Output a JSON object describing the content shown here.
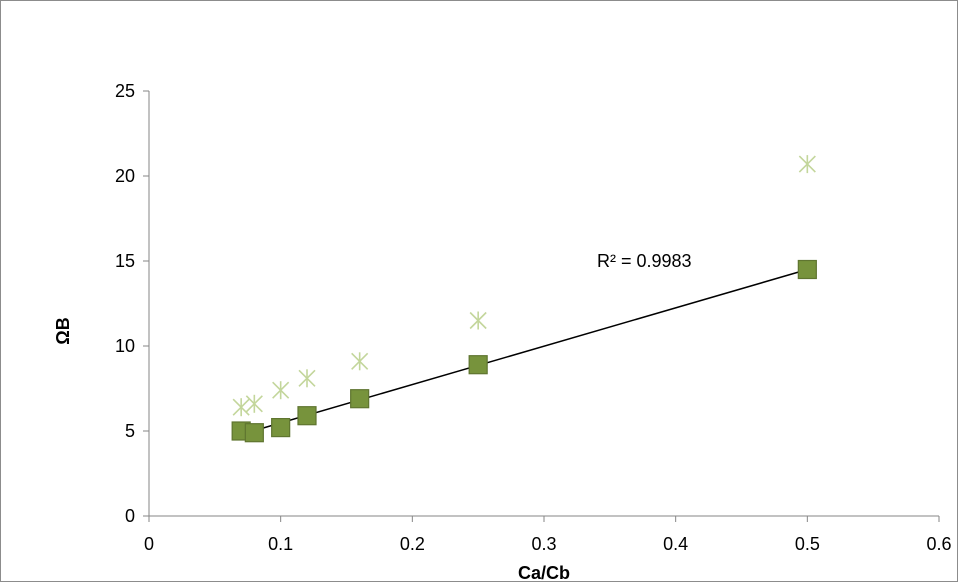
{
  "chart_data": {
    "type": "scatter",
    "xlabel": "Ca/Cb",
    "ylabel": "ΩB",
    "xlim": [
      0,
      0.6
    ],
    "ylim": [
      0,
      25
    ],
    "x_ticks": [
      "0",
      "0.1",
      "0.2",
      "0.3",
      "0.4",
      "0.5",
      "0.6"
    ],
    "y_ticks": [
      "0",
      "5",
      "10",
      "15",
      "20",
      "25"
    ],
    "grid": false,
    "legend": "none",
    "series": [
      {
        "marker": "square",
        "color": "#77933c",
        "points": [
          {
            "x": 0.07,
            "y": 5.0
          },
          {
            "x": 0.08,
            "y": 4.9
          },
          {
            "x": 0.1,
            "y": 5.2
          },
          {
            "x": 0.12,
            "y": 5.9
          },
          {
            "x": 0.16,
            "y": 6.9
          },
          {
            "x": 0.25,
            "y": 8.9
          },
          {
            "x": 0.5,
            "y": 14.5
          }
        ]
      },
      {
        "marker": "asterisk",
        "color": "#c3d69b",
        "points": [
          {
            "x": 0.07,
            "y": 6.4
          },
          {
            "x": 0.08,
            "y": 6.6
          },
          {
            "x": 0.1,
            "y": 7.4
          },
          {
            "x": 0.12,
            "y": 8.1
          },
          {
            "x": 0.16,
            "y": 9.1
          },
          {
            "x": 0.25,
            "y": 11.5
          },
          {
            "x": 0.5,
            "y": 20.7
          }
        ]
      }
    ],
    "trendline": {
      "type": "linear",
      "color": "#000000",
      "from": {
        "x": 0.07,
        "y": 4.8
      },
      "to": {
        "x": 0.5,
        "y": 14.5
      },
      "annotation": "R² = 0.9983"
    }
  }
}
